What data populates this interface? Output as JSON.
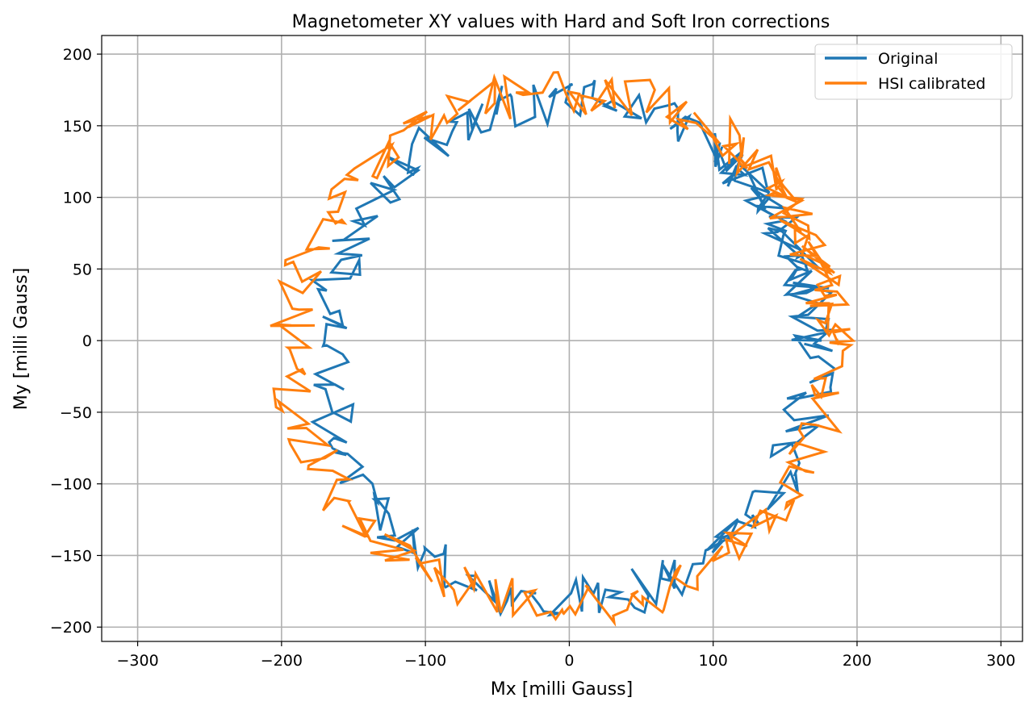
{
  "chart_data": {
    "type": "line",
    "title": "Magnetometer XY values with Hard and Soft Iron corrections",
    "xlabel": "Mx [milli Gauss]",
    "ylabel": "My [milli Gauss]",
    "xlim": [
      -325,
      315
    ],
    "ylim": [
      -210,
      213
    ],
    "xticks": [
      -300,
      -200,
      -100,
      0,
      100,
      200,
      300
    ],
    "yticks": [
      -200,
      -150,
      -100,
      -50,
      0,
      50,
      100,
      150,
      200
    ],
    "xtick_labels": [
      "−300",
      "−200",
      "−100",
      "0",
      "100",
      "200",
      "300"
    ],
    "ytick_labels": [
      "−200",
      "−150",
      "−100",
      "−50",
      "0",
      "50",
      "100",
      "150",
      "200"
    ],
    "grid": true,
    "legend_position": "top-right",
    "series": [
      {
        "name": "Original",
        "color": "#1f77b4",
        "shape": "noisy ring",
        "center": [
          0,
          -7
        ],
        "radius": [
          170,
          175
        ],
        "point_count": 260
      },
      {
        "name": "HSI calibrated",
        "color": "#ff7f0e",
        "shape": "noisy ring",
        "center": [
          -5,
          -5
        ],
        "radius": [
          188,
          180
        ],
        "point_count": 260
      }
    ]
  }
}
